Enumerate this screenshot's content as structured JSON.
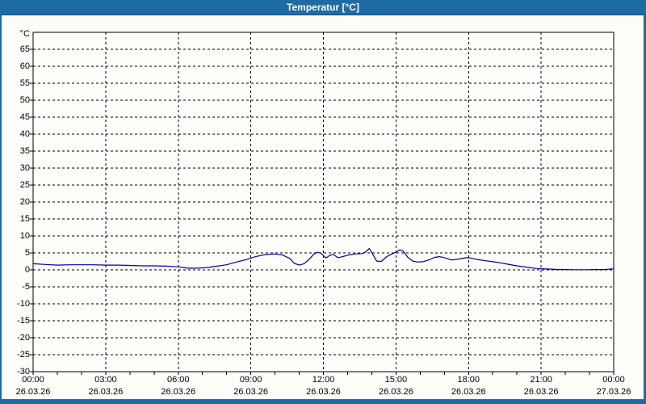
{
  "window": {
    "title": "Temperatur [°C]"
  },
  "colors": {
    "frame": "#1e6ba3",
    "titlebar": "#1e6ba3",
    "title_text": "#ffffff",
    "background": "#fdfdfa",
    "plot_border": "#000000",
    "grid": "#000000",
    "line": "#0000a0",
    "label_text": "#000000"
  },
  "chart_data": {
    "type": "line",
    "title": "Temperatur [°C]",
    "y_axis_unit": "°C",
    "ylim": [
      -30,
      70
    ],
    "y_tick_step": 5,
    "y_tick_values": [
      65,
      60,
      55,
      50,
      45,
      40,
      35,
      30,
      25,
      20,
      15,
      10,
      5,
      0,
      -5,
      -10,
      -15,
      -20,
      -25,
      -30
    ],
    "y_tick_labels": [
      "65",
      "60",
      "55",
      "50",
      "45",
      "40",
      "35",
      "30",
      "25",
      "20",
      "15",
      "10",
      "5",
      "0",
      "-5",
      "-10",
      "-15",
      "-20",
      "-25",
      "-30"
    ],
    "x_axis_hours": [
      0,
      24
    ],
    "x_major_ticks": [
      {
        "hour": 0,
        "time": "00:00",
        "date": "26.03.26"
      },
      {
        "hour": 3,
        "time": "03:00",
        "date": "26.03.26"
      },
      {
        "hour": 6,
        "time": "06:00",
        "date": "26.03.26"
      },
      {
        "hour": 9,
        "time": "09:00",
        "date": "26.03.26"
      },
      {
        "hour": 12,
        "time": "12:00",
        "date": "26.03.26"
      },
      {
        "hour": 15,
        "time": "15:00",
        "date": "26.03.26"
      },
      {
        "hour": 18,
        "time": "18:00",
        "date": "26.03.26"
      },
      {
        "hour": 21,
        "time": "21:00",
        "date": "26.03.26"
      },
      {
        "hour": 24,
        "time": "00:00",
        "date": "27.03.26"
      }
    ],
    "x_minor_tick_every_hours": 1,
    "grid": {
      "style": "dashed",
      "h_lines_at_degC": [
        65,
        60,
        55,
        50,
        45,
        40,
        35,
        30,
        25,
        20,
        15,
        10,
        5,
        0,
        -5,
        -10,
        -15,
        -20,
        -25
      ],
      "v_lines_at_hours": [
        3,
        6,
        9,
        12,
        15,
        18,
        21
      ]
    },
    "series": [
      {
        "name": "Temperatur",
        "color": "#0000a0",
        "points_hour_degC": [
          [
            0.0,
            1.8
          ],
          [
            0.5,
            1.6
          ],
          [
            1.0,
            1.4
          ],
          [
            1.5,
            1.5
          ],
          [
            2.0,
            1.5
          ],
          [
            2.5,
            1.5
          ],
          [
            3.0,
            1.4
          ],
          [
            3.5,
            1.4
          ],
          [
            4.0,
            1.3
          ],
          [
            4.5,
            1.2
          ],
          [
            5.0,
            1.2
          ],
          [
            5.5,
            1.1
          ],
          [
            6.0,
            0.9
          ],
          [
            6.4,
            0.5
          ],
          [
            6.8,
            0.5
          ],
          [
            7.2,
            0.7
          ],
          [
            7.6,
            1.1
          ],
          [
            8.0,
            1.5
          ],
          [
            8.4,
            2.3
          ],
          [
            8.8,
            3.0
          ],
          [
            9.2,
            3.9
          ],
          [
            9.6,
            4.5
          ],
          [
            10.0,
            4.7
          ],
          [
            10.3,
            4.4
          ],
          [
            10.6,
            3.4
          ],
          [
            10.8,
            1.9
          ],
          [
            11.0,
            1.4
          ],
          [
            11.2,
            1.8
          ],
          [
            11.4,
            3.0
          ],
          [
            11.6,
            4.6
          ],
          [
            11.75,
            5.2
          ],
          [
            11.9,
            4.9
          ],
          [
            12.1,
            3.5
          ],
          [
            12.25,
            4.2
          ],
          [
            12.4,
            4.6
          ],
          [
            12.6,
            3.6
          ],
          [
            12.8,
            3.9
          ],
          [
            13.0,
            4.3
          ],
          [
            13.3,
            4.7
          ],
          [
            13.6,
            4.8
          ],
          [
            13.75,
            5.3
          ],
          [
            13.9,
            6.3
          ],
          [
            14.05,
            4.5
          ],
          [
            14.2,
            2.6
          ],
          [
            14.4,
            2.5
          ],
          [
            14.6,
            3.8
          ],
          [
            14.8,
            4.6
          ],
          [
            15.0,
            5.2
          ],
          [
            15.15,
            5.9
          ],
          [
            15.3,
            5.5
          ],
          [
            15.5,
            3.6
          ],
          [
            15.7,
            2.6
          ],
          [
            15.9,
            2.3
          ],
          [
            16.1,
            2.4
          ],
          [
            16.35,
            2.9
          ],
          [
            16.6,
            3.7
          ],
          [
            16.8,
            3.9
          ],
          [
            17.0,
            3.6
          ],
          [
            17.3,
            2.9
          ],
          [
            17.6,
            3.2
          ],
          [
            17.9,
            3.6
          ],
          [
            18.1,
            3.5
          ],
          [
            18.4,
            3.0
          ],
          [
            18.7,
            2.7
          ],
          [
            19.0,
            2.4
          ],
          [
            19.3,
            2.1
          ],
          [
            19.6,
            1.7
          ],
          [
            20.0,
            1.2
          ],
          [
            20.4,
            0.8
          ],
          [
            20.8,
            0.4
          ],
          [
            21.2,
            0.25
          ],
          [
            21.6,
            0.15
          ],
          [
            22.0,
            0.1
          ],
          [
            22.4,
            0.05
          ],
          [
            22.8,
            0.05
          ],
          [
            23.2,
            0.1
          ],
          [
            23.6,
            0.1
          ],
          [
            24.0,
            0.3
          ]
        ]
      }
    ]
  }
}
